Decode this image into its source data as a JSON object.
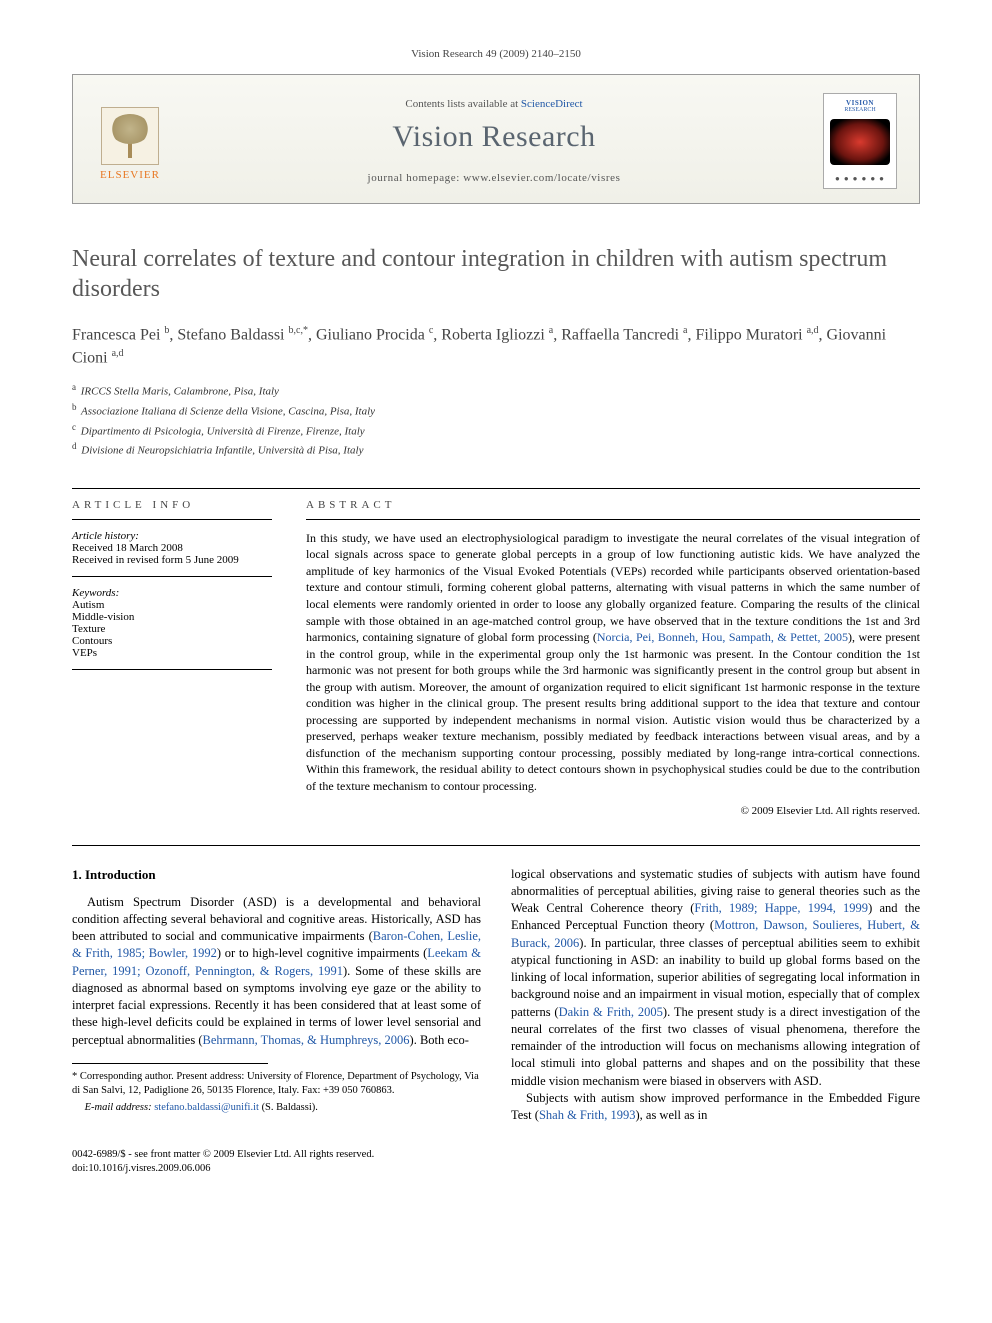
{
  "citation": "Vision Research 49 (2009) 2140–2150",
  "header": {
    "publisher": "ELSEVIER",
    "contents_prefix": "Contents lists available at ",
    "contents_link": "ScienceDirect",
    "journal": "Vision Research",
    "homepage_prefix": "journal homepage: ",
    "homepage_url": "www.elsevier.com/locate/visres",
    "cover_title": "VISION",
    "cover_sub": "RESEARCH"
  },
  "title": "Neural correlates of texture and contour integration in children with autism spectrum disorders",
  "authors_html": "Francesca Pei <sup>b</sup>, Stefano Baldassi <sup>b,c,*</sup>, Giuliano Procida <sup>c</sup>, Roberta Igliozzi <sup>a</sup>, Raffaella Tancredi <sup>a</sup>, Filippo Muratori <sup>a,d</sup>, Giovanni Cioni <sup>a,d</sup>",
  "affiliations": [
    {
      "sup": "a",
      "text": "IRCCS Stella Maris, Calambrone, Pisa, Italy"
    },
    {
      "sup": "b",
      "text": "Associazione Italiana di Scienze della Visione, Cascina, Pisa, Italy"
    },
    {
      "sup": "c",
      "text": "Dipartimento di Psicologia, Università di Firenze, Firenze, Italy"
    },
    {
      "sup": "d",
      "text": "Divisione di Neuropsichiatria Infantile, Università di Pisa, Italy"
    }
  ],
  "article_info": {
    "heading": "ARTICLE INFO",
    "history_label": "Article history:",
    "received": "Received 18 March 2008",
    "revised": "Received in revised form 5 June 2009",
    "keywords_label": "Keywords:",
    "keywords": [
      "Autism",
      "Middle-vision",
      "Texture",
      "Contours",
      "VEPs"
    ]
  },
  "abstract": {
    "heading": "ABSTRACT",
    "text_pre": "In this study, we have used an electrophysiological paradigm to investigate the neural correlates of the visual integration of local signals across space to generate global percepts in a group of low functioning autistic kids. We have analyzed the amplitude of key harmonics of the Visual Evoked Potentials (VEPs) recorded while participants observed orientation-based texture and contour stimuli, forming coherent global patterns, alternating with visual patterns in which the same number of local elements were randomly oriented in order to loose any globally organized feature. Comparing the results of the clinical sample with those obtained in an age-matched control group, we have observed that in the texture conditions the 1st and 3rd harmonics, containing signature of global form processing (",
    "cite": "Norcia, Pei, Bonneh, Hou, Sampath, & Pettet, 2005",
    "text_post": "), were present in the control group, while in the experimental group only the 1st harmonic was present. In the Contour condition the 1st harmonic was not present for both groups while the 3rd harmonic was significantly present in the control group but absent in the group with autism. Moreover, the amount of organization required to elicit significant 1st harmonic response in the texture condition was higher in the clinical group. The present results bring additional support to the idea that texture and contour processing are supported by independent mechanisms in normal vision. Autistic vision would thus be characterized by a preserved, perhaps weaker texture mechanism, possibly mediated by feedback interactions between visual areas, and by a disfunction of the mechanism supporting contour processing, possibly mediated by long-range intra-cortical connections. Within this framework, the residual ability to detect contours shown in psychophysical studies could be due to the contribution of the texture mechanism to contour processing.",
    "copyright": "© 2009 Elsevier Ltd. All rights reserved."
  },
  "intro": {
    "heading": "1. Introduction",
    "col1": {
      "p1_a": "Autism Spectrum Disorder (ASD) is a developmental and behavioral condition affecting several behavioral and cognitive areas. Historically, ASD has been attributed to social and communicative impairments (",
      "c1": "Baron-Cohen, Leslie, & Frith, 1985; Bowler, 1992",
      "p1_b": ") or to high-level cognitive impairments (",
      "c2": "Leekam & Perner, 1991; Ozonoff, Pennington, & Rogers, 1991",
      "p1_c": "). Some of these skills are diagnosed as abnormal based on symptoms involving eye gaze or the ability to interpret facial expressions. Recently it has been considered that at least some of these high-level deficits could be explained in terms of lower level sensorial and perceptual abnormalities (",
      "c3": "Behrmann, Thomas, & Humphreys, 2006",
      "p1_d": "). Both eco-"
    },
    "col2": {
      "p1_a": "logical observations and systematic studies of subjects with autism have found abnormalities of perceptual abilities, giving raise to general theories such as the Weak Central Coherence theory (",
      "c1": "Frith, 1989; Happe, 1994, 1999",
      "p1_b": ") and the Enhanced Perceptual Function theory (",
      "c2": "Mottron, Dawson, Soulieres, Hubert, & Burack, 2006",
      "p1_c": "). In particular, three classes of perceptual abilities seem to exhibit atypical functioning in ASD: an inability to build up global forms based on the linking of local information, superior abilities of segregating local information in background noise and an impairment in visual motion, especially that of complex patterns (",
      "c3": "Dakin & Frith, 2005",
      "p1_d": "). The present study is a direct investigation of the neural correlates of the first two classes of visual phenomena, therefore the remainder of the introduction will focus on mechanisms allowing integration of local stimuli into global patterns and shapes and on the possibility that these middle vision mechanism were biased in observers with ASD.",
      "p2_a": "Subjects with autism show improved performance in the Embedded Figure Test (",
      "c4": "Shah & Frith, 1993",
      "p2_b": "), as well as in"
    }
  },
  "footnote": {
    "corr": "* Corresponding author. Present address: University of Florence, Department of Psychology, Via di San Salvi, 12, Padiglione 26, 50135 Florence, Italy. Fax: +39 050 760863.",
    "email_label": "E-mail address:",
    "email": "stefano.baldassi@unifi.it",
    "email_who": " (S. Baldassi)."
  },
  "footer": {
    "left1": "0042-6989/$ - see front matter © 2009 Elsevier Ltd. All rights reserved.",
    "left2": "doi:10.1016/j.visres.2009.06.006"
  },
  "colors": {
    "link": "#2158a7",
    "elsevier_orange": "#e87722",
    "title_gray": "#585858"
  }
}
